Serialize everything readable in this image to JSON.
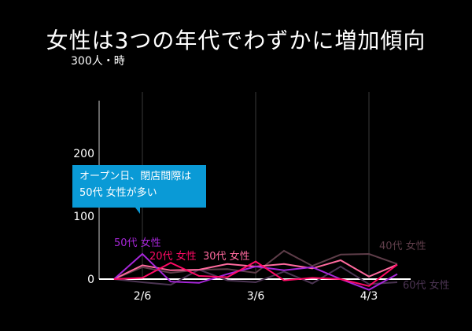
{
  "chart_data": {
    "type": "line",
    "title": "女性は3つの年代でわずかに増加傾向",
    "ylabel": "人・時",
    "ylim": [
      0,
      300
    ],
    "yticks": [
      {
        "value": 0,
        "label": "0"
      },
      {
        "value": 100,
        "label": "100"
      },
      {
        "value": 200,
        "label": "200"
      },
      {
        "value": 300,
        "label": "300人・時"
      }
    ],
    "xticks": [
      {
        "index": 1,
        "label": "2/6"
      },
      {
        "index": 5,
        "label": "3/6"
      },
      {
        "index": 9,
        "label": "4/3"
      }
    ],
    "grid": "vertical at x ticks",
    "series": [
      {
        "name": "40代 女性",
        "color": "#5e3d49",
        "values": [
          0,
          19,
          10,
          15,
          16,
          10,
          45,
          21,
          39,
          40,
          24
        ]
      },
      {
        "name": "60代 女性",
        "color": "#4b3452",
        "values": [
          0,
          -5,
          -9,
          15,
          -2,
          -5,
          12,
          -7,
          20,
          -8,
          -5
        ]
      },
      {
        "name": "30代 女性",
        "color": "#ff6a9e",
        "values": [
          0,
          22,
          14,
          15,
          24,
          20,
          24,
          17,
          30,
          4,
          23
        ]
      },
      {
        "name": "50代 女性",
        "color": "#a626d8",
        "values": [
          0,
          40,
          -4,
          -6,
          8,
          20,
          14,
          19,
          0,
          -17,
          8
        ]
      },
      {
        "name": "20代 女性",
        "color": "#ff0a66",
        "values": [
          0,
          2,
          26,
          5,
          3,
          28,
          -2,
          2,
          0,
          -11,
          23
        ]
      }
    ],
    "annotation": {
      "line1": "オープン日、閉店間際は",
      "line2": "50代 女性が多い"
    }
  }
}
